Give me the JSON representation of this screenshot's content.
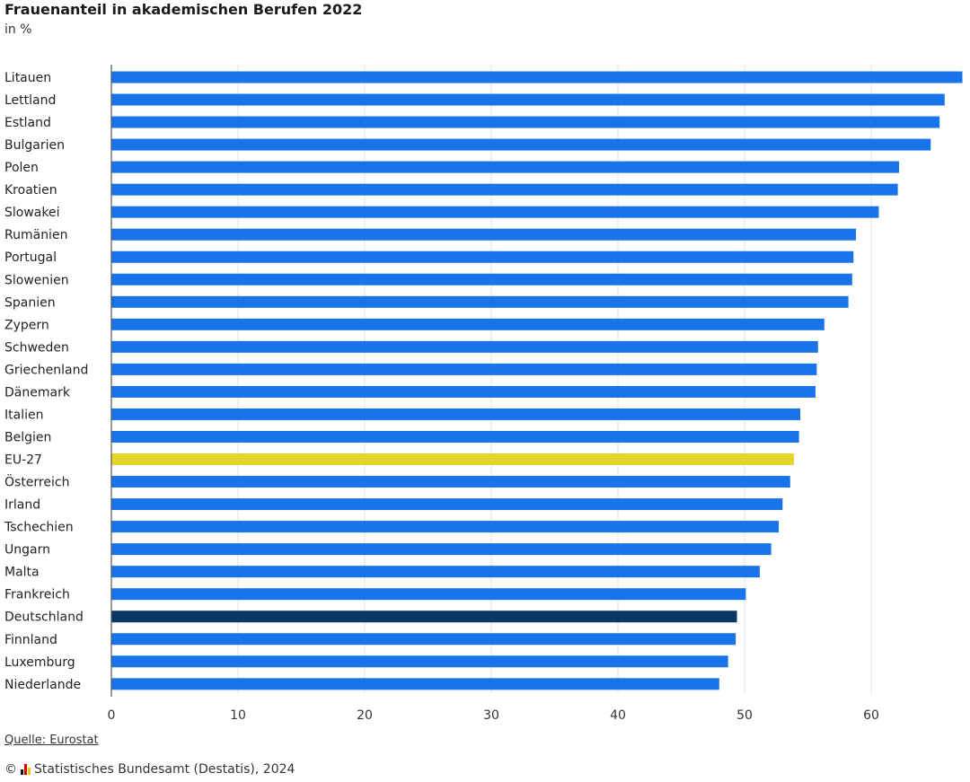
{
  "header": {
    "title": "Frauenanteil in akademischen Berufen 2022",
    "subtitle": "in %"
  },
  "footer": {
    "source": "Quelle: Eurostat",
    "copyright_symbol": "©",
    "copyright": "Statistisches Bundesamt (Destatis), 2024"
  },
  "colors": {
    "default": "#1874e8",
    "eu27": "#e3d52a",
    "deutschland": "#0b3765",
    "grid": "#e2e2e2",
    "axis": "#555555"
  },
  "chart_data": {
    "type": "bar",
    "orientation": "horizontal",
    "title": "Frauenanteil in akademischen Berufen 2022",
    "subtitle": "in %",
    "xlim": [
      0,
      67
    ],
    "xticks": [
      0,
      10,
      20,
      30,
      40,
      50,
      60
    ],
    "grid": true,
    "categories": [
      "Litauen",
      "Lettland",
      "Estland",
      "Bulgarien",
      "Polen",
      "Kroatien",
      "Slowakei",
      "Rumänien",
      "Portugal",
      "Slowenien",
      "Spanien",
      "Zypern",
      "Schweden",
      "Griechenland",
      "Dänemark",
      "Italien",
      "Belgien",
      "EU-27",
      "Österreich",
      "Irland",
      "Tschechien",
      "Ungarn",
      "Malta",
      "Frankreich",
      "Deutschland",
      "Finnland",
      "Luxemburg",
      "Niederlande"
    ],
    "values": [
      67.2,
      65.8,
      65.4,
      64.7,
      62.2,
      62.1,
      60.6,
      58.8,
      58.6,
      58.5,
      58.2,
      56.3,
      55.8,
      55.7,
      55.6,
      54.4,
      54.3,
      53.9,
      53.6,
      53.0,
      52.7,
      52.1,
      51.2,
      50.1,
      49.4,
      49.3,
      48.7,
      48.0
    ],
    "highlight": {
      "EU-27": "eu27",
      "Deutschland": "deutschland"
    }
  }
}
